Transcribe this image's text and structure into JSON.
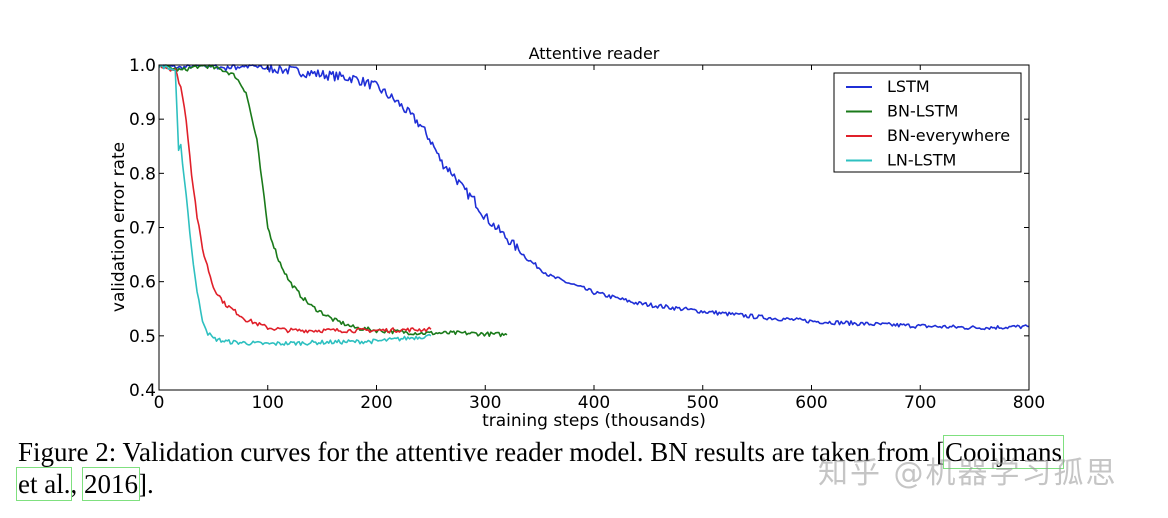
{
  "chart_data": {
    "type": "line",
    "title": "Attentive reader",
    "xlabel": "training steps (thousands)",
    "ylabel": "validation error rate",
    "xlim": [
      0,
      800
    ],
    "ylim": [
      0.4,
      1.0
    ],
    "xticks": [
      0,
      100,
      200,
      300,
      400,
      500,
      600,
      700,
      800
    ],
    "yticks": [
      0.4,
      0.5,
      0.6,
      0.7,
      0.8,
      0.9,
      1.0
    ],
    "ytick_labels": [
      "0.4",
      "0.5",
      "0.6",
      "0.7",
      "0.8",
      "0.9",
      "1.0"
    ],
    "grid": false,
    "legend_position": "upper right",
    "series": [
      {
        "name": "LSTM",
        "color": "#1f2fd6",
        "x": [
          0,
          20,
          40,
          60,
          80,
          100,
          120,
          140,
          160,
          180,
          200,
          220,
          230,
          240,
          250,
          260,
          270,
          280,
          290,
          300,
          320,
          340,
          360,
          380,
          400,
          420,
          440,
          460,
          480,
          500,
          550,
          600,
          650,
          700,
          750,
          800
        ],
        "y": [
          1.0,
          0.995,
          1.0,
          0.995,
          1.0,
          0.995,
          0.99,
          0.985,
          0.98,
          0.975,
          0.96,
          0.93,
          0.91,
          0.89,
          0.86,
          0.82,
          0.8,
          0.77,
          0.75,
          0.72,
          0.68,
          0.64,
          0.61,
          0.595,
          0.58,
          0.57,
          0.56,
          0.555,
          0.55,
          0.545,
          0.535,
          0.527,
          0.522,
          0.518,
          0.515,
          0.517
        ]
      },
      {
        "name": "BN-LSTM",
        "color": "#1a7a1a",
        "x": [
          0,
          20,
          40,
          60,
          70,
          80,
          90,
          95,
          100,
          110,
          120,
          130,
          140,
          160,
          180,
          200,
          240,
          280,
          320
        ],
        "y": [
          1.0,
          0.99,
          1.0,
          0.99,
          0.98,
          0.95,
          0.86,
          0.78,
          0.7,
          0.64,
          0.6,
          0.575,
          0.555,
          0.53,
          0.515,
          0.51,
          0.505,
          0.505,
          0.502
        ]
      },
      {
        "name": "BN-everywhere",
        "color": "#e0202a",
        "x": [
          0,
          15,
          20,
          25,
          30,
          35,
          40,
          50,
          60,
          70,
          80,
          100,
          120,
          150,
          200,
          250
        ],
        "y": [
          1.0,
          0.99,
          0.96,
          0.9,
          0.8,
          0.72,
          0.66,
          0.59,
          0.56,
          0.545,
          0.53,
          0.515,
          0.51,
          0.51,
          0.51,
          0.512
        ]
      },
      {
        "name": "LN-LSTM",
        "color": "#2ec0c0",
        "x": [
          0,
          15,
          18,
          20,
          25,
          30,
          35,
          40,
          45,
          50,
          60,
          70,
          100,
          150,
          200,
          250
        ],
        "y": [
          1.0,
          0.99,
          0.84,
          0.85,
          0.76,
          0.66,
          0.58,
          0.53,
          0.505,
          0.495,
          0.49,
          0.488,
          0.485,
          0.488,
          0.49,
          0.5
        ]
      }
    ]
  },
  "caption": {
    "prefix": "Figure 2: Validation curves for the attentive reader model.  BN results are taken from [",
    "cite_author_1": "Cooijmans",
    "cite_author_2": "et al.",
    "separator": ", ",
    "cite_year": "2016",
    "suffix": "]."
  },
  "watermark": "知乎 @机器学习孤思"
}
